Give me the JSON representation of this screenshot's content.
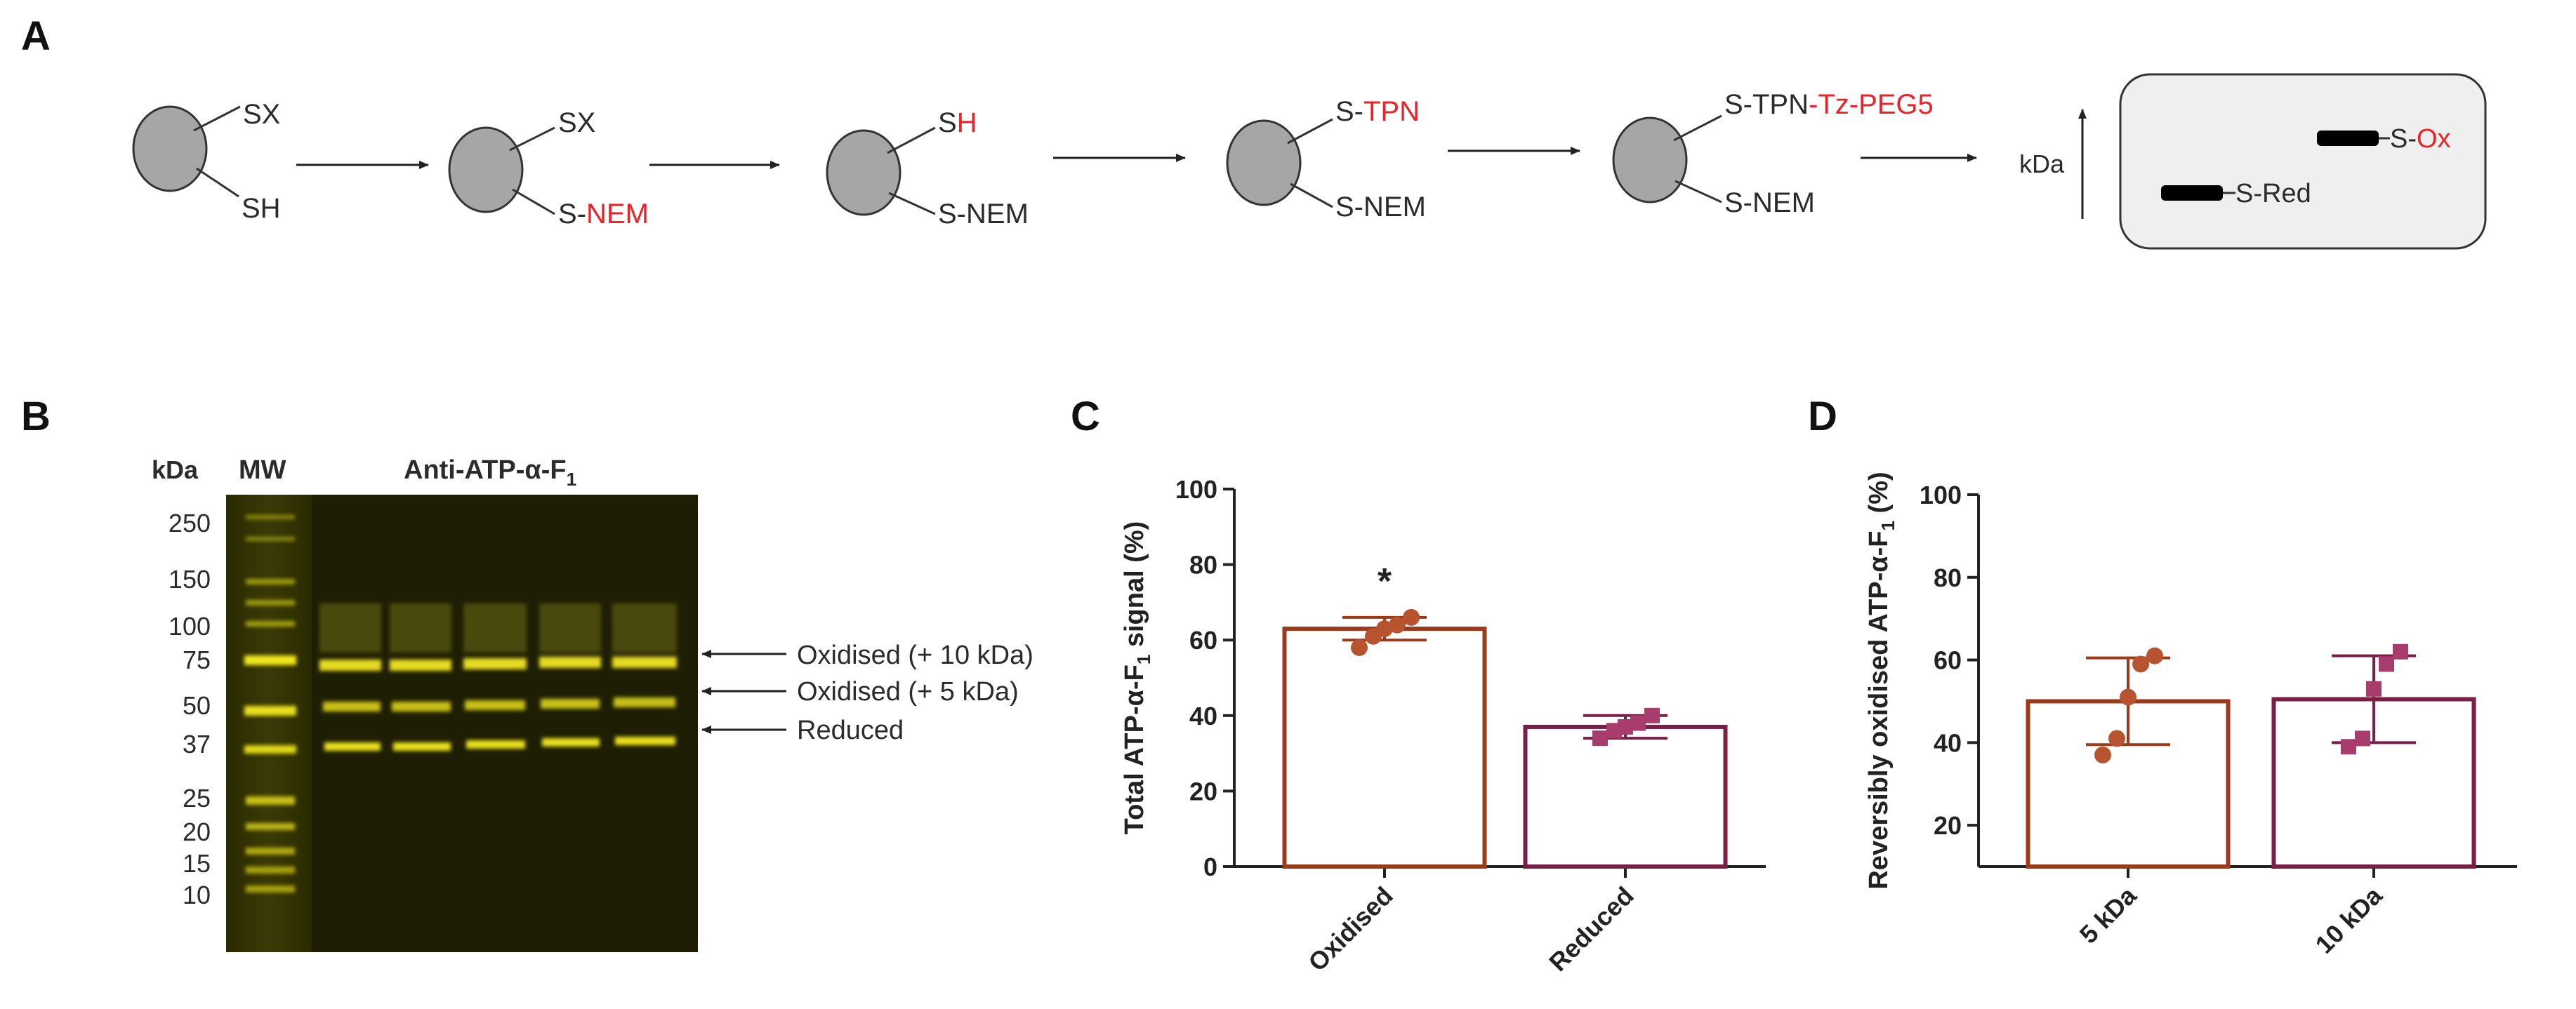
{
  "panels": {
    "a": "A",
    "b": "B",
    "c": "C",
    "d": "D"
  },
  "scheme": {
    "steps": [
      {
        "top": "SX",
        "bottom": "SH"
      },
      {
        "top": "SX",
        "bottom_prefix": "S-",
        "bottom_red": "NEM"
      },
      {
        "top_prefix": "S",
        "top_red": "H",
        "bottom": "S-NEM"
      },
      {
        "top_prefix": "S-",
        "top_red": "TPN",
        "bottom": "S-NEM"
      },
      {
        "top_prefix": "S-TPN",
        "top_red": "-Tz-PEG5",
        "bottom": "S-NEM"
      }
    ],
    "gel_axis_label": "kDa",
    "band_ox_prefix": "S-",
    "band_ox_red": "Ox",
    "band_red": "S-Red"
  },
  "gel": {
    "kda_header": "kDa",
    "mw_header": "MW",
    "antibody_prefix": "Anti-ATP-α-F",
    "antibody_sub": "1",
    "markers": [
      "250",
      "150",
      "100",
      "75",
      "50",
      "37",
      "25",
      "20",
      "15",
      "10"
    ],
    "band_labels": [
      "Oxidised (+ 10 kDa)",
      "Oxidised (+ 5 kDa)",
      "Reduced"
    ]
  },
  "chart_data": [
    {
      "type": "bar",
      "categories": [
        "Oxidised",
        "Reduced"
      ],
      "values": [
        63,
        37
      ],
      "error": [
        3,
        3
      ],
      "points": [
        [
          58,
          61,
          63,
          64,
          66
        ],
        [
          34,
          36,
          37,
          38,
          40
        ]
      ],
      "ylabel_prefix": "Total ATP-α-F",
      "ylabel_sub": "1",
      "ylabel_suffix": " signal (%)",
      "yticks": [
        "0",
        "20",
        "40",
        "60",
        "80",
        "100"
      ],
      "ylim": [
        0,
        100
      ],
      "annotation": "*",
      "colors": [
        "#9b3a1c",
        "#7b1e45"
      ],
      "point_colors": [
        "#b8532f",
        "#a83c6d"
      ]
    },
    {
      "type": "bar",
      "categories": [
        "5 kDa",
        "10 kDa"
      ],
      "values": [
        50,
        50.5
      ],
      "error": [
        10.5,
        10.5
      ],
      "points": [
        [
          37,
          41,
          51,
          59,
          61
        ],
        [
          39,
          41,
          53,
          59,
          62
        ]
      ],
      "ylabel_prefix": "Reversibly oxidised ATP-α-F",
      "ylabel_sub": "1",
      "ylabel_suffix": " (%)",
      "yticks": [
        "20",
        "40",
        "60",
        "80",
        "100"
      ],
      "ylim": [
        10,
        100
      ],
      "colors": [
        "#9b3a1c",
        "#7b1e45"
      ],
      "point_colors": [
        "#b8532f",
        "#a83c6d"
      ]
    }
  ]
}
